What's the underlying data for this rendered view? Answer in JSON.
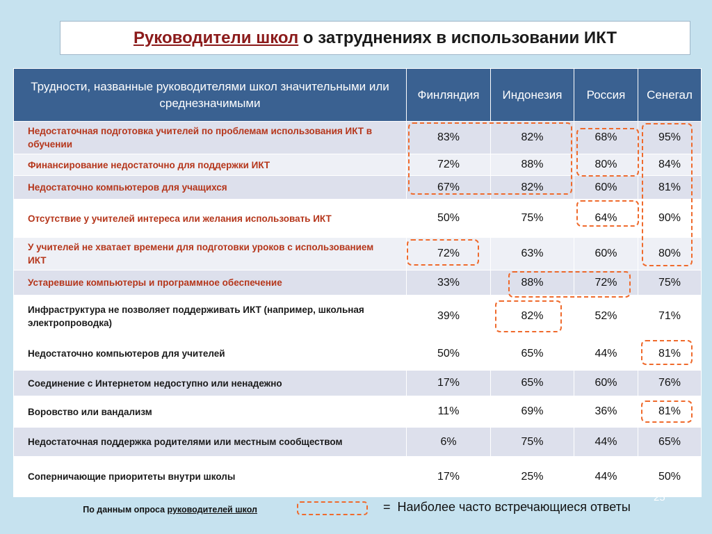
{
  "title": {
    "part1": "Руководители школ",
    "part2": " о затруднениях в использовании ИКТ"
  },
  "table": {
    "header": {
      "difficulty": "Трудности, названные руководителями школ значительными или среднезначимыми",
      "countries": [
        "Финляндия",
        "Индонезия",
        "Россия",
        "Сенегал"
      ]
    },
    "rows": [
      {
        "label": "Недостаточная подготовка учителей по проблемам использования ИКТ в обучении",
        "values": [
          "83%",
          "82%",
          "68%",
          "95%"
        ]
      },
      {
        "label": "Финансирование недостаточно для поддержки ИКТ",
        "values": [
          "72%",
          "88%",
          "80%",
          "84%"
        ]
      },
      {
        "label": "Недостаточно компьютеров для учащихся",
        "values": [
          "67%",
          "82%",
          "60%",
          "81%"
        ]
      },
      {
        "label": "Отсутствие у учителей интереса или желания использовать ИКТ",
        "values": [
          "50%",
          "75%",
          "64%",
          "90%"
        ]
      },
      {
        "label": "У учителей не хватает времени для подготовки уроков с использованием ИКТ",
        "values": [
          "72%",
          "63%",
          "60%",
          "80%"
        ]
      },
      {
        "label": "Устаревшие компьютеры и программное обеспечение",
        "values": [
          "33%",
          "88%",
          "72%",
          "75%"
        ]
      },
      {
        "label": "Инфраструктура не позволяет поддерживать ИКТ (например, школьная электропроводка)",
        "values": [
          "39%",
          "82%",
          "52%",
          "71%"
        ]
      },
      {
        "label": "Недостаточно компьютеров для учителей",
        "values": [
          "50%",
          "65%",
          "44%",
          "81%"
        ]
      },
      {
        "label": "Соединение с Интернетом недоступно или ненадежно",
        "values": [
          "17%",
          "65%",
          "60%",
          "76%"
        ]
      },
      {
        "label": "Воровство или вандализм",
        "values": [
          "11%",
          "69%",
          "36%",
          "81%"
        ]
      },
      {
        "label": "Недостаточная поддержка родителями или местным сообществом",
        "values": [
          "6%",
          "75%",
          "44%",
          "65%"
        ]
      },
      {
        "label": "Соперничающие приоритеты внутри школы",
        "values": [
          "17%",
          "25%",
          "44%",
          "50%"
        ]
      }
    ]
  },
  "footer": {
    "source_prefix": "По данным опроса ",
    "source_link": "руководителей школ",
    "legend_text": "=  Наиболее часто встречающиеся ответы",
    "page_number": "25"
  },
  "colors": {
    "header_bg": "#3a6191",
    "highlight": "#ef6a2c",
    "label_red": "#b5361b"
  }
}
